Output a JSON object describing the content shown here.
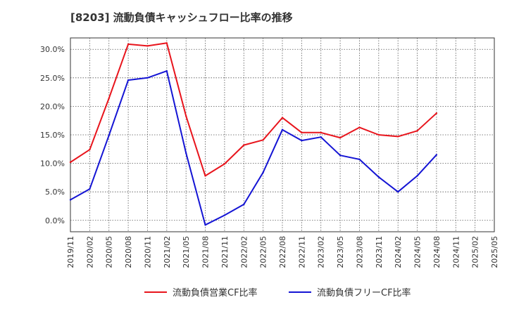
{
  "title": "[8203]  流動負債キャッシュフロー比率の推移",
  "chart_data": {
    "type": "line",
    "x": [
      "2019/11",
      "2020/02",
      "2020/05",
      "2020/08",
      "2020/11",
      "2021/02",
      "2021/05",
      "2021/08",
      "2021/11",
      "2022/02",
      "2022/05",
      "2022/08",
      "2022/11",
      "2023/02",
      "2023/05",
      "2023/08",
      "2023/11",
      "2024/02",
      "2024/05",
      "2024/08",
      "2024/11",
      "2025/02",
      "2025/05"
    ],
    "ylim": [
      -2.0,
      32.0
    ],
    "yticks": [
      0,
      5,
      10,
      15,
      20,
      25,
      30
    ],
    "ytick_labels": [
      "0.0%",
      "5.0%",
      "10.0%",
      "15.0%",
      "20.0%",
      "25.0%",
      "30.0%"
    ],
    "grid": true,
    "legend_position": "bottom",
    "series": [
      {
        "name": "流動負債営業CF比率",
        "color": "#e8141c",
        "values": [
          10.2,
          12.4,
          21.4,
          30.9,
          30.6,
          31.1,
          18.3,
          7.8,
          9.9,
          13.2,
          14.1,
          18.0,
          15.4,
          15.4,
          14.5,
          16.3,
          15.0,
          14.7,
          15.7,
          18.8,
          null,
          null,
          null
        ]
      },
      {
        "name": "流動負債フリーCF比率",
        "color": "#1414d4",
        "values": [
          3.6,
          5.5,
          14.9,
          24.6,
          25.0,
          26.2,
          11.8,
          -0.8,
          0.9,
          2.8,
          8.4,
          15.9,
          14.0,
          14.6,
          11.4,
          10.7,
          7.6,
          5.0,
          7.8,
          11.5,
          null,
          null,
          null
        ]
      }
    ]
  }
}
